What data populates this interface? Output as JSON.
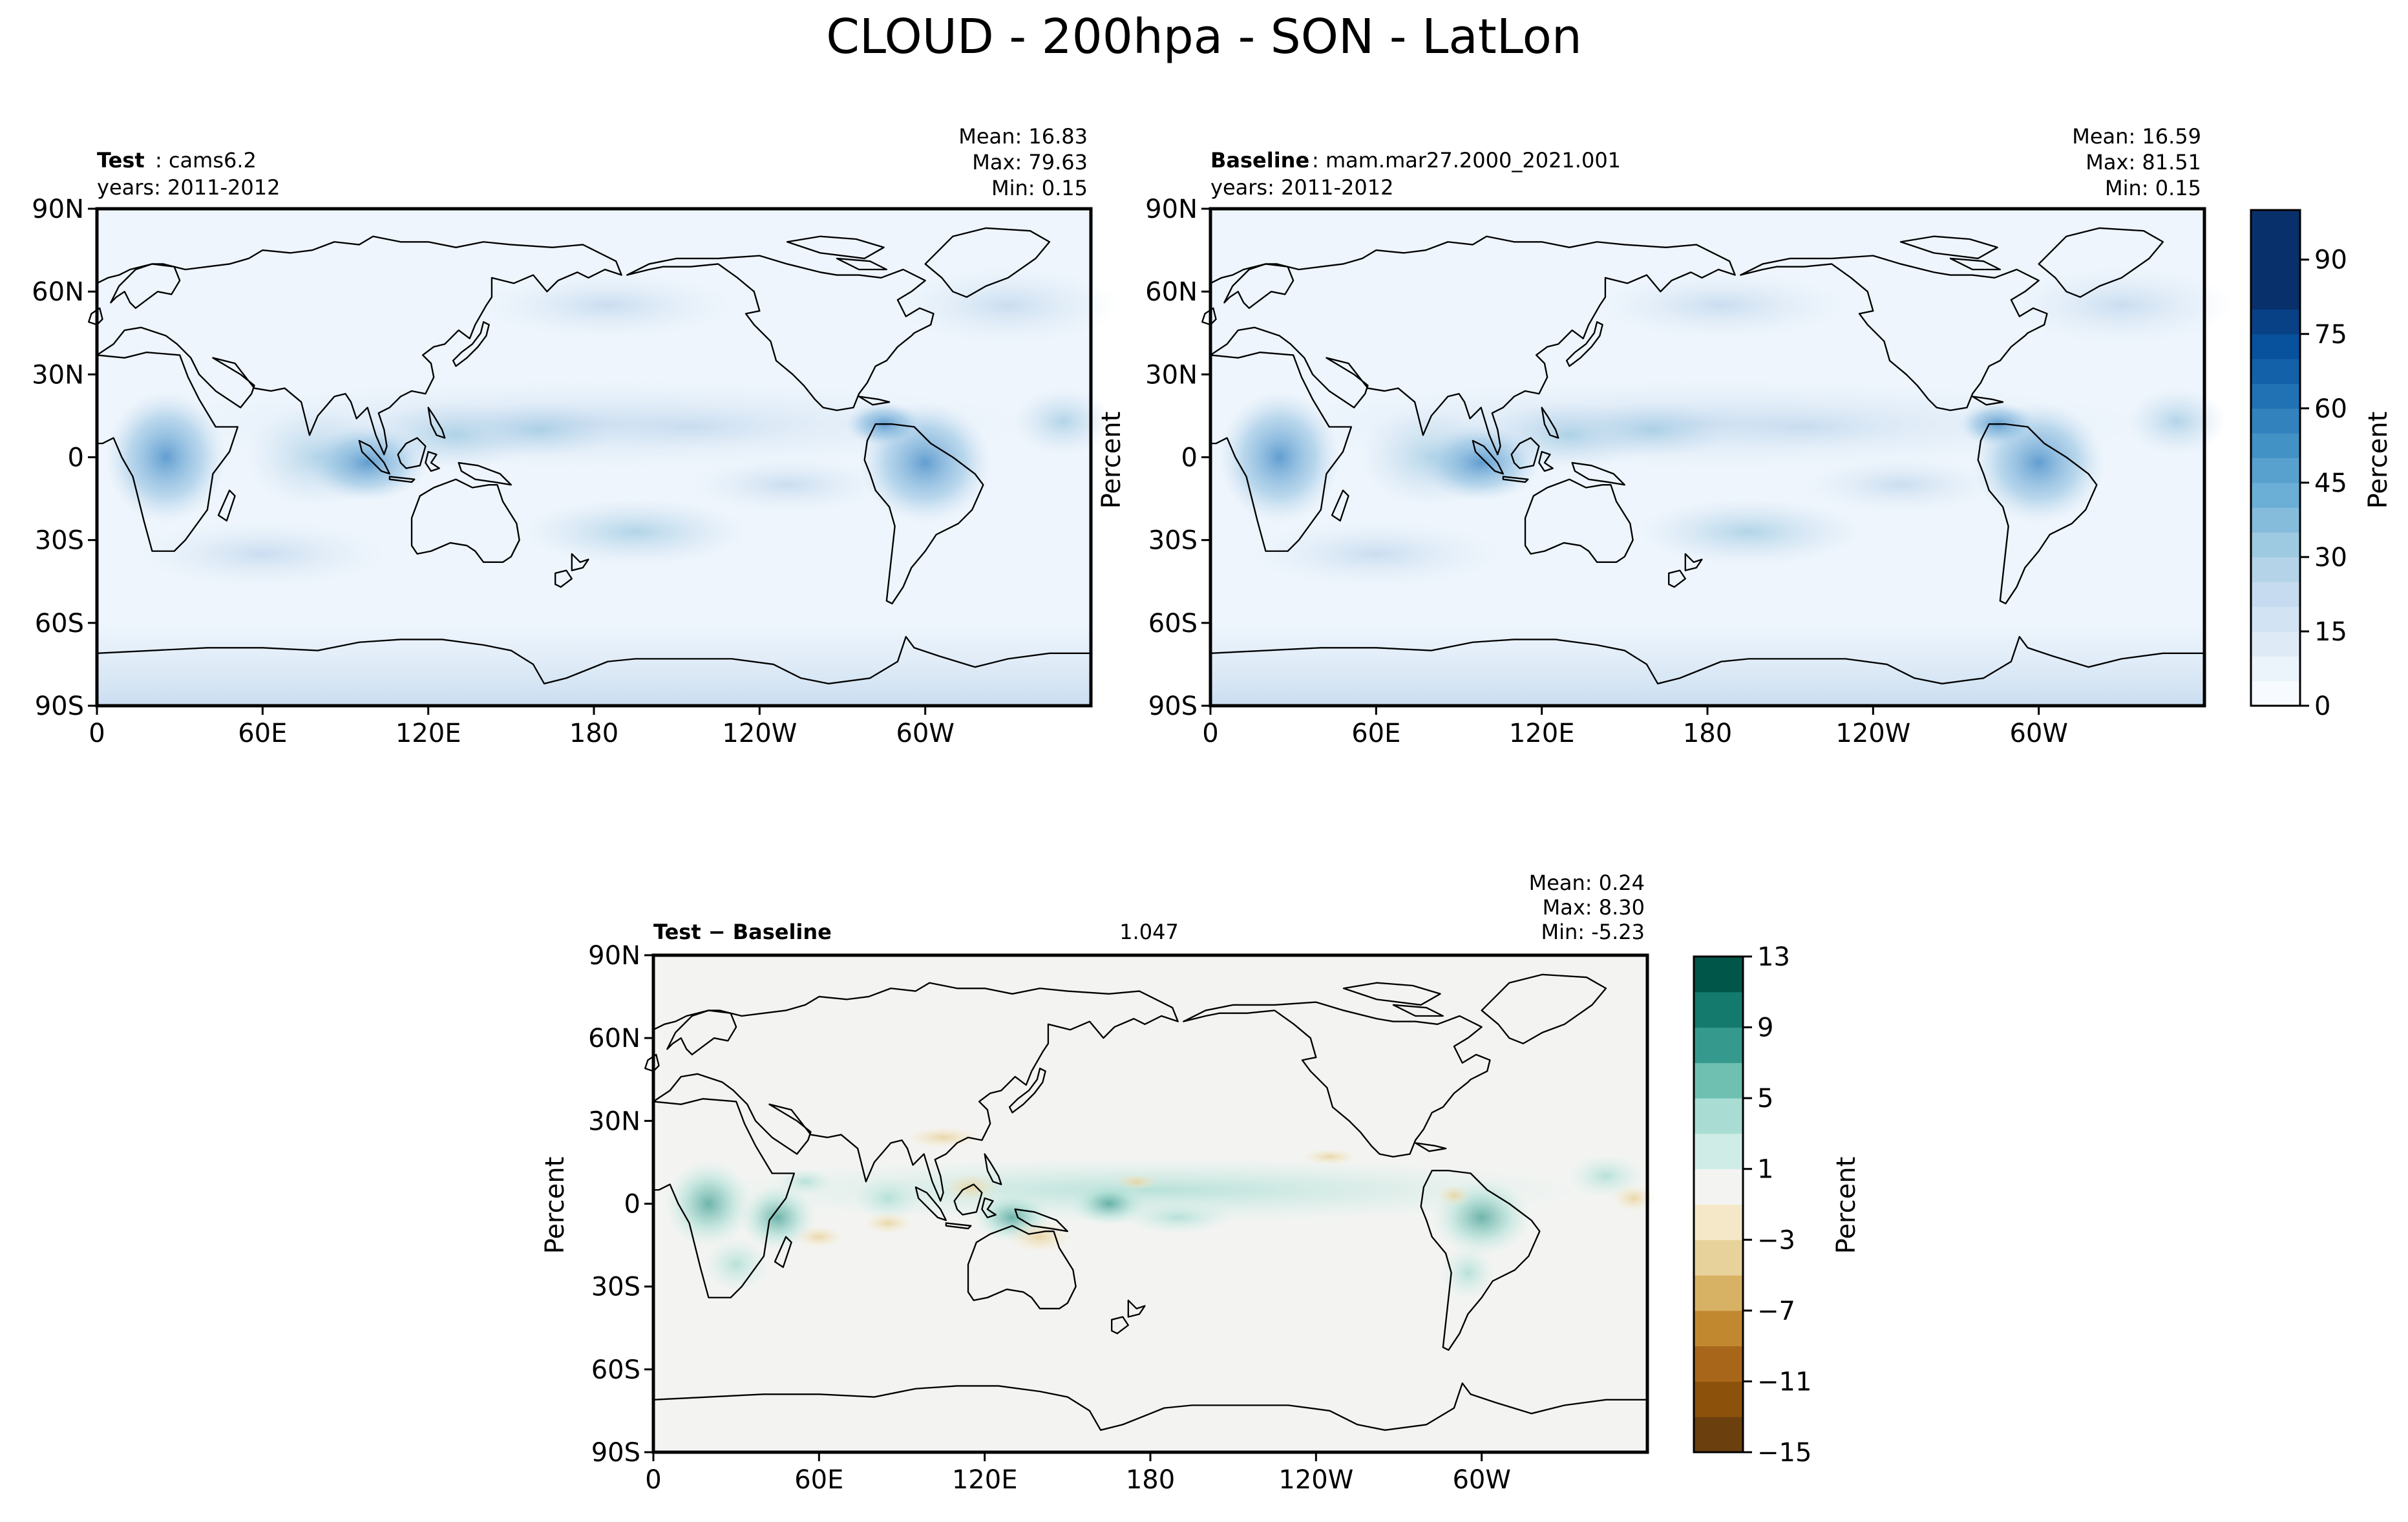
{
  "figure_title": "CLOUD - 200hpa - SON - LatLon",
  "chart_data": [
    {
      "type": "heatmap",
      "panel": "test",
      "label_bold": "Test",
      "label_rest": ": cams6.2",
      "years": "years: 2011-2012",
      "stats": [
        "Mean: 16.83",
        "Max: 79.63",
        "Min:  0.15"
      ],
      "xticks": [
        "0",
        "60E",
        "120E",
        "180",
        "120W",
        "60W"
      ],
      "xtick_values": [
        0,
        60,
        120,
        180,
        240,
        300
      ],
      "xlim": [
        0,
        360
      ],
      "yticks": [
        "90N",
        "60N",
        "30N",
        "0",
        "30S",
        "60S",
        "90S"
      ],
      "ytick_values": [
        90,
        60,
        30,
        0,
        -30,
        -60,
        -90
      ],
      "ylim": [
        -90,
        90
      ],
      "ylabel": "",
      "variable": "cloud fraction at 200 hPa",
      "units": "Percent",
      "mean": 16.83,
      "max": 79.63,
      "min": 0.15
    },
    {
      "type": "heatmap",
      "panel": "baseline",
      "label_bold": "Baseline",
      "label_rest": ": mam.mar27.2000_2021.001",
      "years": "years: 2011-2012",
      "stats": [
        "Mean: 16.59",
        "Max: 81.51",
        "Min:  0.15"
      ],
      "xticks": [
        "0",
        "60E",
        "120E",
        "180",
        "120W",
        "60W"
      ],
      "xtick_values": [
        0,
        60,
        120,
        180,
        240,
        300
      ],
      "xlim": [
        0,
        360
      ],
      "yticks": [
        "90N",
        "60N",
        "30N",
        "0",
        "30S",
        "60S",
        "90S"
      ],
      "ytick_values": [
        90,
        60,
        30,
        0,
        -30,
        -60,
        -90
      ],
      "ylim": [
        -90,
        90
      ],
      "ylabel": "Percent",
      "units": "Percent",
      "mean": 16.59,
      "max": 81.51,
      "min": 0.15
    },
    {
      "type": "heatmap",
      "panel": "difference",
      "label_bold": "Test − Baseline",
      "rmse": 1.047,
      "stats": [
        "Mean:  0.24",
        "Max:  8.30",
        "Min: -5.23"
      ],
      "xticks": [
        "0",
        "60E",
        "120E",
        "180",
        "120W",
        "60W"
      ],
      "xtick_values": [
        0,
        60,
        120,
        180,
        240,
        300
      ],
      "xlim": [
        0,
        360
      ],
      "yticks": [
        "90N",
        "60N",
        "30N",
        "0",
        "30S",
        "60S",
        "90S"
      ],
      "ytick_values": [
        90,
        60,
        30,
        0,
        -30,
        -60,
        -90
      ],
      "ylim": [
        -90,
        90
      ],
      "ylabel": "Percent",
      "units": "Percent",
      "mean": 0.24,
      "max": 8.3,
      "min": -5.23
    }
  ],
  "colorbars": {
    "main": {
      "label": "Percent",
      "range": [
        0,
        100
      ],
      "ticks": [
        "0",
        "15",
        "30",
        "45",
        "60",
        "75",
        "90"
      ],
      "tick_values": [
        0,
        15,
        30,
        45,
        60,
        75,
        90
      ],
      "levels": [
        0,
        5,
        10,
        15,
        20,
        25,
        30,
        35,
        40,
        45,
        50,
        55,
        60,
        65,
        70,
        75,
        80,
        85,
        90,
        95,
        100
      ],
      "colors": [
        "#f7fbff",
        "#ebf3fb",
        "#deebf7",
        "#d2e3f3",
        "#c6dbef",
        "#b4d3e9",
        "#9ecae1",
        "#85bcdc",
        "#6baed6",
        "#58a1cf",
        "#4292c6",
        "#3282be",
        "#2171b5",
        "#1361a9",
        "#08519c",
        "#084185",
        "#08306b",
        "#08306b",
        "#08306b",
        "#08306b"
      ]
    },
    "diff": {
      "label": "Percent",
      "range": [
        -15,
        13
      ],
      "ticks": [
        "13",
        "9",
        "5",
        "1",
        "−3",
        "−7",
        "−11",
        "−15"
      ],
      "tick_values": [
        13,
        9,
        5,
        1,
        -3,
        -7,
        -11,
        -15
      ],
      "levels": [
        -15,
        -13,
        -11,
        -9,
        -7,
        -5,
        -3,
        -1,
        1,
        3,
        5,
        7,
        9,
        11,
        13
      ],
      "colors": [
        "#6b3f0e",
        "#8c510a",
        "#a8661b",
        "#c2882f",
        "#d8b264",
        "#e8d29c",
        "#f5e8c8",
        "#f3f4f2",
        "#d0ece6",
        "#a9ddd3",
        "#6fc0b1",
        "#36998d",
        "#147a6e",
        "#01564a"
      ]
    }
  }
}
